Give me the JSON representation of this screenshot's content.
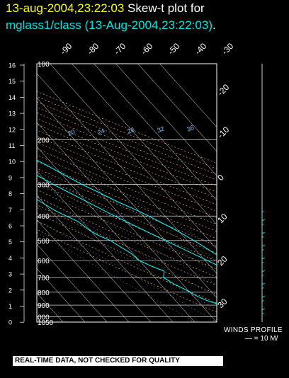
{
  "header": {
    "timestamp": "13-aug-2004,23:22:03",
    "label": "Skew-t plot for",
    "station": "mglass1/class (13-Aug-2004,23:22:03)",
    "period": "."
  },
  "winds": {
    "label": "WINDS PROFILE",
    "scale": "— = 10 M/"
  },
  "footer": {
    "note": "REAL-TIME DATA, NOT CHECKED FOR QUALITY"
  },
  "colors": {
    "temperature": "#00ffff",
    "grid": "#ffffff",
    "heights": "#ffffff",
    "dry_adiabats": "#ffa060",
    "mixing_ratio": "#80c8ff",
    "title_time": "#ffff00"
  },
  "chart_data": {
    "type": "line",
    "title": "Skew-t plot for mglass1/class (13-Aug-2004,23:22:03)",
    "y_scale": "log-pressure",
    "pressure_ticks": [
      100,
      200,
      300,
      400,
      500,
      600,
      700,
      800,
      900,
      1000,
      1050
    ],
    "pressure_tick_labels": [
      "100",
      "200",
      "300",
      "400",
      "500",
      "600",
      "700",
      "800",
      "900",
      "000",
      "1050"
    ],
    "height_ticks_km": [
      "16",
      "15",
      "14",
      "13",
      "12",
      "11",
      "10",
      "9",
      "8",
      "7",
      "6",
      "5",
      "4",
      "3",
      "2",
      "1",
      "0"
    ],
    "skew_temp_ticks_top": [
      "-90",
      "-80",
      "-70",
      "-60",
      "-50",
      "-40",
      "-30"
    ],
    "skew_temp_ticks_right": [
      "-20",
      "-10",
      "0",
      "10",
      "20",
      "30"
    ],
    "mixing_ratio_labels": [
      "20",
      "24",
      "28",
      "32",
      "36"
    ],
    "series": [
      {
        "points": [
          {
            "p": 1050,
            "t": 22.5
          },
          {
            "p": 1000,
            "t": 25.5
          },
          {
            "p": 960,
            "t": 22.5
          },
          {
            "p": 930,
            "t": 20.5
          },
          {
            "p": 900,
            "t": 18.5
          },
          {
            "p": 860,
            "t": 16.5
          },
          {
            "p": 820,
            "t": 14
          },
          {
            "p": 780,
            "t": 11
          },
          {
            "p": 740,
            "t": 8.5
          },
          {
            "p": 700,
            "t": 5.5
          },
          {
            "p": 660,
            "t": 3.5
          },
          {
            "p": 630,
            "t": 1.5
          },
          {
            "p": 600,
            "t": -0.5
          },
          {
            "p": 560,
            "t": -3
          },
          {
            "p": 520,
            "t": -5.5
          },
          {
            "p": 500,
            "t": -7
          },
          {
            "p": 470,
            "t": -9.5
          },
          {
            "p": 440,
            "t": -12.5
          },
          {
            "p": 420,
            "t": -15
          },
          {
            "p": 400,
            "t": -17.5
          },
          {
            "p": 380,
            "t": -20.5
          },
          {
            "p": 350,
            "t": -26
          },
          {
            "p": 320,
            "t": -31
          },
          {
            "p": 300,
            "t": -35
          },
          {
            "p": 270,
            "t": -40
          },
          {
            "p": 250,
            "t": -43.5
          },
          {
            "p": 230,
            "t": -48
          },
          {
            "p": 200,
            "t": -54.5
          },
          {
            "p": 170,
            "t": -61
          },
          {
            "p": 150,
            "t": -65.5
          },
          {
            "p": 130,
            "t": -70.5
          },
          {
            "p": 110,
            "t": -75
          },
          {
            "p": 100,
            "t": -77
          }
        ]
      },
      {
        "points": [
          {
            "p": 1050,
            "t": -5
          },
          {
            "p": 1000,
            "t": -8
          },
          {
            "p": 960,
            "t": -14
          },
          {
            "p": 930,
            "t": -18
          },
          {
            "p": 900,
            "t": -21
          },
          {
            "p": 860,
            "t": -26
          },
          {
            "p": 820,
            "t": -29
          },
          {
            "p": 780,
            "t": -31
          },
          {
            "p": 740,
            "t": -34
          },
          {
            "p": 700,
            "t": -36
          },
          {
            "p": 660,
            "t": -33
          },
          {
            "p": 630,
            "t": -37
          },
          {
            "p": 600,
            "t": -40
          },
          {
            "p": 560,
            "t": -41
          },
          {
            "p": 530,
            "t": -43
          },
          {
            "p": 500,
            "t": -45
          },
          {
            "p": 480,
            "t": -48
          },
          {
            "p": 460,
            "t": -50
          },
          {
            "p": 440,
            "t": -51
          },
          {
            "p": 420,
            "t": -52
          },
          {
            "p": 400,
            "t": -55
          },
          {
            "p": 380,
            "t": -58
          },
          {
            "p": 350,
            "t": -61
          },
          {
            "p": 320,
            "t": -64
          },
          {
            "p": 300,
            "t": -67
          },
          {
            "p": 270,
            "t": -71
          },
          {
            "p": 250,
            "t": -74
          },
          {
            "p": 230,
            "t": -77
          },
          {
            "p": 200,
            "t": -82
          },
          {
            "p": 170,
            "t": -86
          },
          {
            "p": 150,
            "t": -89
          },
          {
            "p": 130,
            "t": -93
          },
          {
            "p": 110,
            "t": -96
          },
          {
            "p": 100,
            "t": -98
          }
        ]
      },
      {
        "points": [
          {
            "p": 1000,
            "t": 25
          },
          {
            "p": 900,
            "t": 17
          },
          {
            "p": 800,
            "t": 9
          },
          {
            "p": 700,
            "t": 0
          },
          {
            "p": 600,
            "t": -9
          },
          {
            "p": 500,
            "t": -20
          },
          {
            "p": 400,
            "t": -33
          },
          {
            "p": 300,
            "t": -48
          },
          {
            "p": 200,
            "t": -66
          },
          {
            "p": 100,
            "t": -92
          }
        ]
      }
    ]
  }
}
